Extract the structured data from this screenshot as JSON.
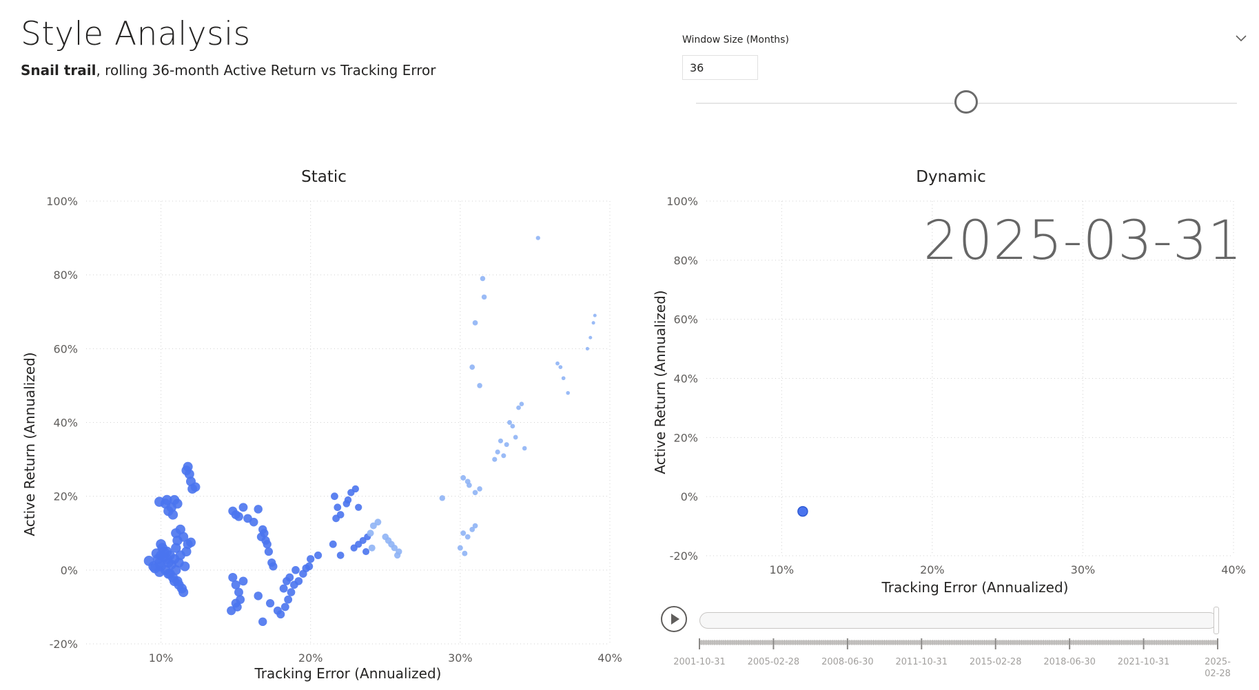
{
  "page": {
    "title": "Style Analysis",
    "subtitle_bold": "Snail trail",
    "subtitle_rest": ", rolling 36-month Active Return vs Tracking Error"
  },
  "slicer": {
    "label": "Window Size (Months)",
    "value": "36",
    "slider_fraction": 0.5
  },
  "static_chart": {
    "title": "Static",
    "xlabel": "Tracking Error (Annualized)",
    "ylabel": "Active Return (Annualized)",
    "x_ticks": [
      "10%",
      "20%",
      "30%",
      "40%"
    ],
    "y_ticks": [
      "100%",
      "80%",
      "60%",
      "40%",
      "20%",
      "0%",
      "-20%"
    ]
  },
  "dynamic_chart": {
    "title": "Dynamic",
    "date_label": "2025-03-31",
    "xlabel": "Tracking Error (Annualized)",
    "ylabel": "Active Return (Annualized)",
    "x_ticks": [
      "10%",
      "20%",
      "30%",
      "40%"
    ],
    "y_ticks": [
      "100%",
      "80%",
      "60%",
      "40%",
      "20%",
      "0%",
      "-20%"
    ]
  },
  "play_axis": {
    "date_ticks": [
      "2001-10-31",
      "2005-02-28",
      "2008-06-30",
      "2011-10-31",
      "2015-02-28",
      "2018-06-30",
      "2021-10-31",
      "2025-02-28"
    ],
    "progress": 1.0
  },
  "colors": {
    "point": "#4a74ee",
    "point_light": "#8fb4f5",
    "grid": "#d0d0d0",
    "axis_text": "#605e5c"
  },
  "chart_data": [
    {
      "type": "scatter",
      "title": "Static",
      "xlabel": "Tracking Error (Annualized)",
      "ylabel": "Active Return (Annualized)",
      "xlim": [
        5,
        40
      ],
      "ylim": [
        -20,
        100
      ],
      "grid": true,
      "points": [
        [
          9.2,
          2.5
        ],
        [
          9.5,
          1
        ],
        [
          9.6,
          0.5
        ],
        [
          9.8,
          3
        ],
        [
          9.9,
          2
        ],
        [
          10,
          4
        ],
        [
          10,
          1
        ],
        [
          10.1,
          6
        ],
        [
          10.2,
          3.5
        ],
        [
          10.3,
          0
        ],
        [
          10.4,
          5
        ],
        [
          10.5,
          2
        ],
        [
          10.5,
          -1
        ],
        [
          10.6,
          4
        ],
        [
          10.7,
          1.5
        ],
        [
          10.8,
          -2
        ],
        [
          10.9,
          3
        ],
        [
          11,
          6
        ],
        [
          11,
          0
        ],
        [
          11.1,
          -3
        ],
        [
          11.2,
          2
        ],
        [
          11.3,
          4
        ],
        [
          11.4,
          -5
        ],
        [
          11.5,
          -6
        ],
        [
          11.2,
          -4
        ],
        [
          11.6,
          1
        ],
        [
          11.7,
          5
        ],
        [
          11.8,
          7
        ],
        [
          12,
          7.5
        ],
        [
          11.5,
          9
        ],
        [
          11.3,
          11
        ],
        [
          11,
          10
        ],
        [
          11.1,
          8
        ],
        [
          10.9,
          -3
        ],
        [
          10.6,
          -1
        ],
        [
          10.4,
          3
        ],
        [
          10.2,
          5
        ],
        [
          10,
          7
        ],
        [
          9.9,
          -0.5
        ],
        [
          9.7,
          4.5
        ],
        [
          10.3,
          18
        ],
        [
          10.5,
          16
        ],
        [
          10.8,
          15
        ],
        [
          10.9,
          19
        ],
        [
          11.1,
          18
        ],
        [
          10.7,
          17
        ],
        [
          10.4,
          19
        ],
        [
          9.9,
          18.5
        ],
        [
          11.8,
          28
        ],
        [
          11.9,
          26
        ],
        [
          12,
          24
        ],
        [
          12.1,
          22
        ],
        [
          11.7,
          27
        ],
        [
          12.3,
          22.5
        ],
        [
          14.8,
          16
        ],
        [
          15,
          15
        ],
        [
          15.2,
          14.5
        ],
        [
          15.5,
          17
        ],
        [
          15.8,
          14
        ],
        [
          16.2,
          13
        ],
        [
          16.5,
          16.5
        ],
        [
          16.8,
          11
        ],
        [
          16.9,
          10
        ],
        [
          17,
          8
        ],
        [
          17.2,
          5
        ],
        [
          17.4,
          2
        ],
        [
          17.5,
          1
        ],
        [
          17.1,
          7
        ],
        [
          16.7,
          9
        ],
        [
          14.8,
          -2
        ],
        [
          15,
          -4
        ],
        [
          15.2,
          -6
        ],
        [
          15.3,
          -8
        ],
        [
          15.5,
          -3
        ],
        [
          15,
          -9
        ],
        [
          14.7,
          -11
        ],
        [
          15.1,
          -10
        ],
        [
          16.5,
          -7
        ],
        [
          16.8,
          -14
        ],
        [
          17.3,
          -9
        ],
        [
          17.8,
          -11
        ],
        [
          18,
          -12
        ],
        [
          18.3,
          -10
        ],
        [
          18.5,
          -8
        ],
        [
          18.7,
          -6
        ],
        [
          18.9,
          -4
        ],
        [
          19.2,
          -3
        ],
        [
          19.5,
          -1
        ],
        [
          19.7,
          0.5
        ],
        [
          19.9,
          1
        ],
        [
          18.2,
          -5
        ],
        [
          18.4,
          -3
        ],
        [
          18.6,
          -2
        ],
        [
          19,
          0
        ],
        [
          20,
          3
        ],
        [
          20.5,
          4
        ],
        [
          21.5,
          7
        ],
        [
          22,
          4
        ],
        [
          21.6,
          20
        ],
        [
          21.8,
          17
        ],
        [
          22,
          15
        ],
        [
          22.4,
          18
        ],
        [
          22.7,
          21
        ],
        [
          23,
          22
        ],
        [
          22.5,
          19
        ],
        [
          23.2,
          17
        ],
        [
          21.7,
          14
        ],
        [
          22.9,
          6
        ],
        [
          23.2,
          7
        ],
        [
          23.5,
          8
        ],
        [
          23.8,
          9
        ],
        [
          24,
          10
        ],
        [
          24.2,
          12
        ],
        [
          24.5,
          13
        ],
        [
          23.7,
          5
        ],
        [
          24.1,
          6
        ],
        [
          25,
          9
        ],
        [
          25.2,
          8
        ],
        [
          25.4,
          7
        ],
        [
          25.6,
          6
        ],
        [
          25.8,
          4
        ],
        [
          25.9,
          5
        ],
        [
          28.8,
          19.5
        ],
        [
          30.2,
          25
        ],
        [
          30.5,
          24
        ],
        [
          30.6,
          23
        ],
        [
          31,
          21
        ],
        [
          31.3,
          22
        ],
        [
          30.2,
          10
        ],
        [
          30.5,
          9
        ],
        [
          30.8,
          11
        ],
        [
          31,
          12
        ],
        [
          30,
          6
        ],
        [
          30.3,
          4.5
        ],
        [
          30.8,
          55
        ],
        [
          31,
          67
        ],
        [
          31.3,
          50
        ],
        [
          31.5,
          79
        ],
        [
          31.6,
          74
        ],
        [
          32.3,
          30
        ],
        [
          32.5,
          32
        ],
        [
          32.7,
          35
        ],
        [
          32.9,
          31
        ],
        [
          33.1,
          34
        ],
        [
          33.3,
          40
        ],
        [
          33.5,
          39
        ],
        [
          33.7,
          36
        ],
        [
          33.9,
          44
        ],
        [
          34.1,
          45
        ],
        [
          34.3,
          33
        ],
        [
          35.2,
          90
        ],
        [
          36.5,
          56
        ],
        [
          36.7,
          55
        ],
        [
          36.9,
          52
        ],
        [
          37.2,
          48
        ],
        [
          38.5,
          60
        ],
        [
          38.7,
          63
        ],
        [
          38.9,
          67
        ],
        [
          39,
          69
        ]
      ]
    },
    {
      "type": "scatter",
      "title": "Dynamic",
      "xlabel": "Tracking Error (Annualized)",
      "ylabel": "Active Return (Annualized)",
      "xlim": [
        5,
        40
      ],
      "ylim": [
        -20,
        100
      ],
      "grid": true,
      "points": [
        [
          11.4,
          -5
        ]
      ]
    }
  ]
}
